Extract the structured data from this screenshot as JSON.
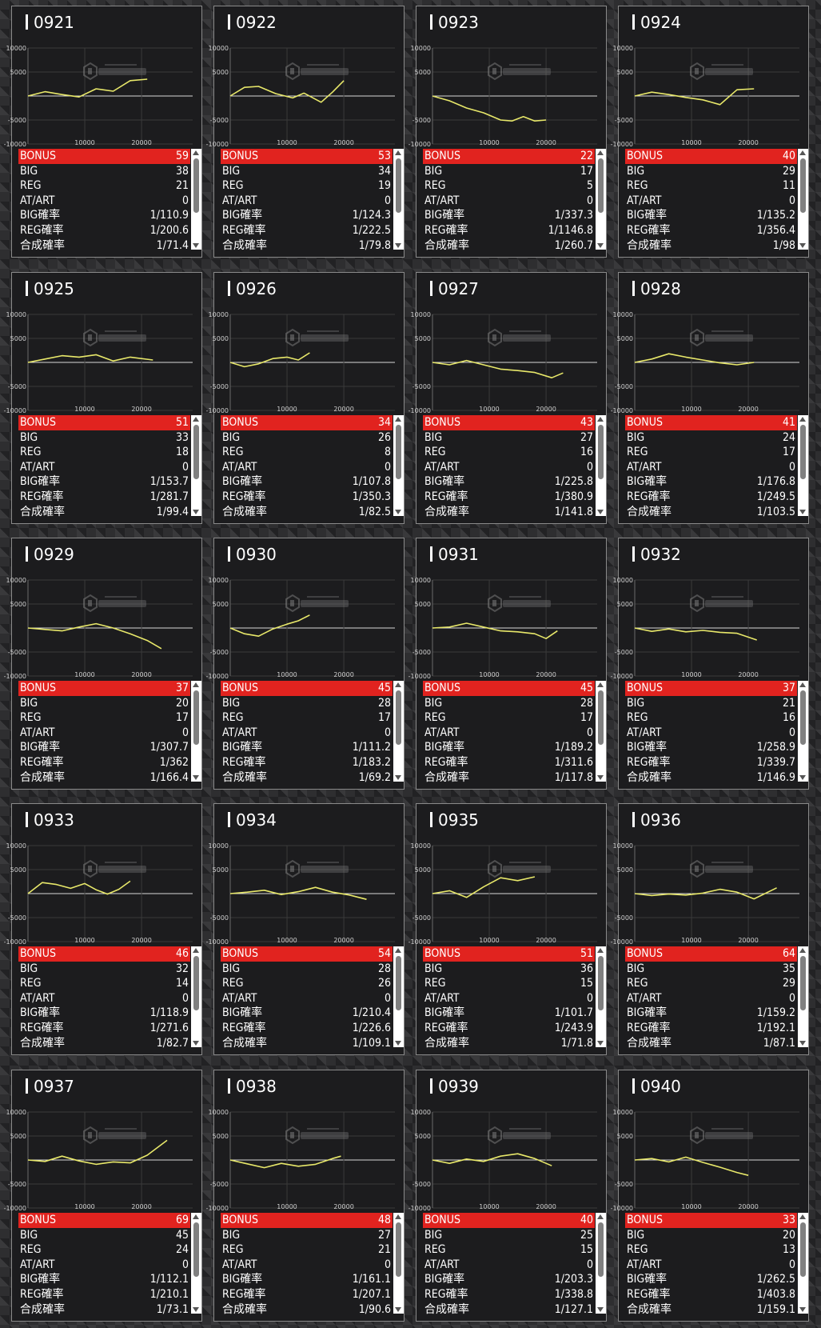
{
  "theme": {
    "accent": "#e1231f",
    "line_color": "#e8e86a",
    "panel_bg": "#1c1c1e",
    "text": "#ffffff"
  },
  "stat_labels": [
    "BONUS",
    "BIG",
    "REG",
    "AT/ART",
    "BIG確率",
    "REG確率",
    "合成確率"
  ],
  "machines": [
    {
      "id": "0921",
      "stats": [
        "59",
        "38",
        "21",
        "0",
        "1/110.9",
        "1/200.6",
        "1/71.4"
      ]
    },
    {
      "id": "0922",
      "stats": [
        "53",
        "34",
        "19",
        "0",
        "1/124.3",
        "1/222.5",
        "1/79.8"
      ]
    },
    {
      "id": "0923",
      "stats": [
        "22",
        "17",
        "5",
        "0",
        "1/337.3",
        "1/1146.8",
        "1/260.7"
      ]
    },
    {
      "id": "0924",
      "stats": [
        "40",
        "29",
        "11",
        "0",
        "1/135.2",
        "1/356.4",
        "1/98"
      ]
    },
    {
      "id": "0925",
      "stats": [
        "51",
        "33",
        "18",
        "0",
        "1/153.7",
        "1/281.7",
        "1/99.4"
      ]
    },
    {
      "id": "0926",
      "stats": [
        "34",
        "26",
        "8",
        "0",
        "1/107.8",
        "1/350.3",
        "1/82.5"
      ]
    },
    {
      "id": "0927",
      "stats": [
        "43",
        "27",
        "16",
        "0",
        "1/225.8",
        "1/380.9",
        "1/141.8"
      ]
    },
    {
      "id": "0928",
      "stats": [
        "41",
        "24",
        "17",
        "0",
        "1/176.8",
        "1/249.5",
        "1/103.5"
      ]
    },
    {
      "id": "0929",
      "stats": [
        "37",
        "20",
        "17",
        "0",
        "1/307.7",
        "1/362",
        "1/166.4"
      ]
    },
    {
      "id": "0930",
      "stats": [
        "45",
        "28",
        "17",
        "0",
        "1/111.2",
        "1/183.2",
        "1/69.2"
      ]
    },
    {
      "id": "0931",
      "stats": [
        "45",
        "28",
        "17",
        "0",
        "1/189.2",
        "1/311.6",
        "1/117.8"
      ]
    },
    {
      "id": "0932",
      "stats": [
        "37",
        "21",
        "16",
        "0",
        "1/258.9",
        "1/339.7",
        "1/146.9"
      ]
    },
    {
      "id": "0933",
      "stats": [
        "46",
        "32",
        "14",
        "0",
        "1/118.9",
        "1/271.6",
        "1/82.7"
      ]
    },
    {
      "id": "0934",
      "stats": [
        "54",
        "28",
        "26",
        "0",
        "1/210.4",
        "1/226.6",
        "1/109.1"
      ]
    },
    {
      "id": "0935",
      "stats": [
        "51",
        "36",
        "15",
        "0",
        "1/101.7",
        "1/243.9",
        "1/71.8"
      ]
    },
    {
      "id": "0936",
      "stats": [
        "64",
        "35",
        "29",
        "0",
        "1/159.2",
        "1/192.1",
        "1/87.1"
      ]
    },
    {
      "id": "0937",
      "stats": [
        "69",
        "45",
        "24",
        "0",
        "1/112.1",
        "1/210.1",
        "1/73.1"
      ]
    },
    {
      "id": "0938",
      "stats": [
        "48",
        "27",
        "21",
        "0",
        "1/161.1",
        "1/207.1",
        "1/90.6"
      ]
    },
    {
      "id": "0939",
      "stats": [
        "40",
        "25",
        "15",
        "0",
        "1/203.3",
        "1/338.8",
        "1/127.1"
      ]
    },
    {
      "id": "0940",
      "stats": [
        "33",
        "20",
        "13",
        "0",
        "1/262.5",
        "1/403.8",
        "1/159.1"
      ]
    }
  ],
  "chart_data": [
    {
      "type": "line",
      "title": "0921",
      "x": [
        0,
        3000,
        6000,
        9000,
        12000,
        15000,
        18000,
        21000
      ],
      "y": [
        0,
        900,
        300,
        -200,
        1500,
        1000,
        3200,
        3500
      ],
      "xlim": [
        0,
        29000
      ],
      "ylim": [
        -10000,
        10000
      ],
      "xticks": [
        "10000",
        "20000"
      ],
      "yticks": [
        "10000",
        "5000",
        "-5000",
        "-10000"
      ]
    },
    {
      "id_note": "0922",
      "type": "line",
      "title": "0922",
      "x": [
        0,
        2500,
        5000,
        8000,
        11000,
        13000,
        16000,
        18000,
        20000
      ],
      "y": [
        0,
        1800,
        2000,
        500,
        -400,
        600,
        -1300,
        800,
        3200
      ],
      "xlim": [
        0,
        29000
      ],
      "ylim": [
        -10000,
        10000
      ],
      "xticks": [
        "10000",
        "20000"
      ],
      "yticks": [
        "10000",
        "5000",
        "-5000",
        "-10000"
      ]
    },
    {
      "type": "line",
      "title": "0923",
      "x": [
        0,
        3000,
        6000,
        9000,
        12000,
        14000,
        16000,
        18000,
        20000
      ],
      "y": [
        0,
        -1000,
        -2500,
        -3500,
        -5000,
        -5200,
        -4300,
        -5200,
        -5000
      ],
      "xlim": [
        0,
        29000
      ],
      "ylim": [
        -10000,
        10000
      ],
      "xticks": [
        "10000",
        "20000"
      ],
      "yticks": [
        "10000",
        "5000",
        "-5000",
        "-10000"
      ]
    },
    {
      "type": "line",
      "title": "0924",
      "x": [
        0,
        3000,
        6000,
        9000,
        12000,
        15000,
        18000,
        21000
      ],
      "y": [
        0,
        800,
        300,
        -300,
        -800,
        -1800,
        1300,
        1500
      ],
      "xlim": [
        0,
        29000
      ],
      "ylim": [
        -10000,
        10000
      ],
      "xticks": [
        "10000",
        "20000"
      ],
      "yticks": [
        "10000",
        "5000",
        "-5000",
        "-10000"
      ]
    },
    {
      "type": "line",
      "title": "0925",
      "x": [
        0,
        3000,
        6000,
        9000,
        12000,
        15000,
        18000,
        22000
      ],
      "y": [
        0,
        700,
        1400,
        1100,
        1600,
        300,
        1100,
        500
      ],
      "xlim": [
        0,
        29000
      ],
      "ylim": [
        -10000,
        10000
      ],
      "xticks": [
        "10000",
        "20000"
      ],
      "yticks": [
        "10000",
        "5000",
        "-5000",
        "-10000"
      ]
    },
    {
      "type": "line",
      "title": "0926",
      "x": [
        0,
        2500,
        5000,
        7500,
        10000,
        12000,
        14000
      ],
      "y": [
        0,
        -900,
        -300,
        800,
        1100,
        500,
        2000
      ],
      "xlim": [
        0,
        29000
      ],
      "ylim": [
        -10000,
        10000
      ],
      "xticks": [
        "10000",
        "20000"
      ],
      "yticks": [
        "10000",
        "5000",
        "-5000",
        "-10000"
      ]
    },
    {
      "type": "line",
      "title": "0927",
      "x": [
        0,
        3000,
        6000,
        9000,
        12000,
        15000,
        18000,
        21000,
        23000
      ],
      "y": [
        0,
        -500,
        400,
        -500,
        -1400,
        -1700,
        -2100,
        -3200,
        -2200
      ],
      "xlim": [
        0,
        29000
      ],
      "ylim": [
        -10000,
        10000
      ],
      "xticks": [
        "10000",
        "20000"
      ],
      "yticks": [
        "10000",
        "5000",
        "-5000",
        "-10000"
      ]
    },
    {
      "type": "line",
      "title": "0928",
      "x": [
        0,
        3000,
        6000,
        9000,
        12000,
        15000,
        18000,
        21000
      ],
      "y": [
        0,
        700,
        1800,
        1100,
        500,
        -100,
        -500,
        0
      ],
      "xlim": [
        0,
        29000
      ],
      "ylim": [
        -10000,
        10000
      ],
      "xticks": [
        "10000",
        "20000"
      ],
      "yticks": [
        "10000",
        "5000",
        "-5000",
        "-10000"
      ]
    },
    {
      "type": "line",
      "title": "0929",
      "x": [
        0,
        3000,
        6000,
        9000,
        12000,
        15000,
        18000,
        21000,
        23500
      ],
      "y": [
        0,
        -300,
        -600,
        200,
        900,
        0,
        -1200,
        -2600,
        -4300
      ],
      "xlim": [
        0,
        29000
      ],
      "ylim": [
        -10000,
        10000
      ],
      "xticks": [
        "10000",
        "20000"
      ],
      "yticks": [
        "10000",
        "5000",
        "-5000",
        "-10000"
      ]
    },
    {
      "type": "line",
      "title": "0930",
      "x": [
        0,
        2500,
        5000,
        7500,
        10000,
        12000,
        14000
      ],
      "y": [
        0,
        -1200,
        -1700,
        -200,
        800,
        1500,
        2700
      ],
      "xlim": [
        0,
        29000
      ],
      "ylim": [
        -10000,
        10000
      ],
      "xticks": [
        "10000",
        "20000"
      ],
      "yticks": [
        "10000",
        "5000",
        "-5000",
        "-10000"
      ]
    },
    {
      "type": "line",
      "title": "0931",
      "x": [
        0,
        3000,
        6000,
        9000,
        12000,
        15000,
        18000,
        20000,
        22000
      ],
      "y": [
        0,
        200,
        1000,
        200,
        -600,
        -800,
        -1200,
        -2200,
        -600
      ],
      "xlim": [
        0,
        29000
      ],
      "ylim": [
        -10000,
        10000
      ],
      "xticks": [
        "10000",
        "20000"
      ],
      "yticks": [
        "10000",
        "5000",
        "-5000",
        "-10000"
      ]
    },
    {
      "type": "line",
      "title": "0932",
      "x": [
        0,
        3000,
        6000,
        9000,
        12000,
        15000,
        18000,
        21500
      ],
      "y": [
        0,
        -700,
        -200,
        -800,
        -500,
        -900,
        -1100,
        -2500
      ],
      "xlim": [
        0,
        29000
      ],
      "ylim": [
        -10000,
        10000
      ],
      "xticks": [
        "10000",
        "20000"
      ],
      "yticks": [
        "10000",
        "5000",
        "-5000",
        "-10000"
      ]
    },
    {
      "type": "line",
      "title": "0933",
      "x": [
        0,
        2500,
        5000,
        7500,
        10000,
        12000,
        14000,
        16000,
        18000
      ],
      "y": [
        0,
        2300,
        1900,
        1100,
        2100,
        800,
        -100,
        900,
        2600
      ],
      "xlim": [
        0,
        29000
      ],
      "ylim": [
        -10000,
        10000
      ],
      "xticks": [
        "10000",
        "20000"
      ],
      "yticks": [
        "10000",
        "5000",
        "-5000",
        "-10000"
      ]
    },
    {
      "type": "line",
      "title": "0934",
      "x": [
        0,
        3000,
        6000,
        9000,
        12000,
        15000,
        18000,
        21000,
        24000
      ],
      "y": [
        0,
        300,
        700,
        -200,
        400,
        1300,
        300,
        -300,
        -1200
      ],
      "xlim": [
        0,
        29000
      ],
      "ylim": [
        -10000,
        10000
      ],
      "xticks": [
        "10000",
        "20000"
      ],
      "yticks": [
        "10000",
        "5000",
        "-5000",
        "-10000"
      ]
    },
    {
      "type": "line",
      "title": "0935",
      "x": [
        0,
        3000,
        6000,
        9000,
        12000,
        15000,
        18000
      ],
      "y": [
        0,
        600,
        -800,
        1400,
        3300,
        2700,
        3500
      ],
      "xlim": [
        0,
        29000
      ],
      "ylim": [
        -10000,
        10000
      ],
      "xticks": [
        "10000",
        "20000"
      ],
      "yticks": [
        "10000",
        "5000",
        "-5000",
        "-10000"
      ]
    },
    {
      "type": "line",
      "title": "0936",
      "x": [
        0,
        3000,
        6000,
        9000,
        12000,
        15000,
        18000,
        21000,
        25000
      ],
      "y": [
        0,
        -400,
        -100,
        -300,
        100,
        900,
        300,
        -1100,
        1200
      ],
      "xlim": [
        0,
        29000
      ],
      "ylim": [
        -10000,
        10000
      ],
      "xticks": [
        "10000",
        "20000"
      ],
      "yticks": [
        "10000",
        "5000",
        "-5000",
        "-10000"
      ]
    },
    {
      "type": "line",
      "title": "0937",
      "x": [
        0,
        3000,
        6000,
        9000,
        12000,
        15000,
        18000,
        21000,
        24500
      ],
      "y": [
        0,
        -300,
        800,
        -200,
        -900,
        -400,
        -600,
        1000,
        4100
      ],
      "xlim": [
        0,
        29000
      ],
      "ylim": [
        -10000,
        10000
      ],
      "xticks": [
        "10000",
        "20000"
      ],
      "yticks": [
        "10000",
        "5000",
        "-5000",
        "-10000"
      ]
    },
    {
      "type": "line",
      "title": "0938",
      "x": [
        0,
        3000,
        6000,
        9000,
        12000,
        15000,
        18000,
        19500
      ],
      "y": [
        0,
        -800,
        -1600,
        -700,
        -1300,
        -900,
        300,
        800
      ],
      "xlim": [
        0,
        29000
      ],
      "ylim": [
        -10000,
        10000
      ],
      "xticks": [
        "10000",
        "20000"
      ],
      "yticks": [
        "10000",
        "5000",
        "-5000",
        "-10000"
      ]
    },
    {
      "type": "line",
      "title": "0939",
      "x": [
        0,
        3000,
        6000,
        9000,
        12000,
        15000,
        18000,
        21000
      ],
      "y": [
        0,
        -700,
        200,
        -300,
        800,
        1300,
        300,
        -1200
      ],
      "xlim": [
        0,
        29000
      ],
      "ylim": [
        -10000,
        10000
      ],
      "xticks": [
        "10000",
        "20000"
      ],
      "yticks": [
        "10000",
        "5000",
        "-5000",
        "-10000"
      ]
    },
    {
      "type": "line",
      "title": "0940",
      "x": [
        0,
        3000,
        6000,
        9000,
        12000,
        15000,
        18000,
        20000
      ],
      "y": [
        0,
        300,
        -400,
        600,
        -500,
        -1500,
        -2600,
        -3200
      ],
      "xlim": [
        0,
        29000
      ],
      "ylim": [
        -10000,
        10000
      ],
      "xticks": [
        "10000",
        "20000"
      ],
      "yticks": [
        "10000",
        "5000",
        "-5000",
        "-10000"
      ]
    }
  ]
}
